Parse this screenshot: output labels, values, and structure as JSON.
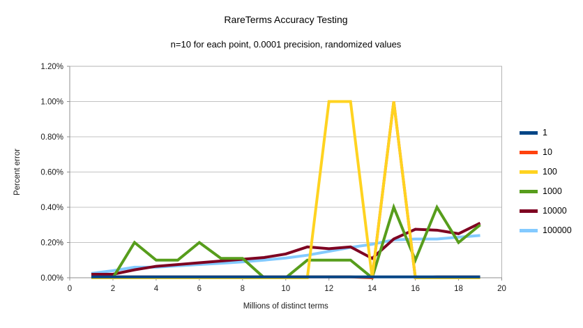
{
  "chart_data": {
    "type": "line",
    "title": "RareTerms Accuracy Testing",
    "subtitle": "n=10 for each point, 0.0001 precision, randomized values",
    "xlabel": "Millions of distinct terms",
    "ylabel": "Percent error",
    "xlim": [
      0,
      20
    ],
    "ylim_pct": [
      0,
      1.2
    ],
    "xticks": [
      0,
      2,
      4,
      6,
      8,
      10,
      12,
      14,
      16,
      18,
      20
    ],
    "xtick_labels": [
      "0",
      "2",
      "4",
      "6",
      "8",
      "10",
      "12",
      "14",
      "16",
      "18",
      "20"
    ],
    "yticks": [
      0,
      0.2,
      0.4,
      0.6,
      0.8,
      1.0,
      1.2
    ],
    "ytick_labels": [
      "0.00%",
      "0.20%",
      "0.40%",
      "0.60%",
      "0.80%",
      "1.00%",
      "1.20%"
    ],
    "grid": "horizontal",
    "legend_position": "right",
    "x": [
      1,
      2,
      3,
      4,
      5,
      6,
      7,
      8,
      9,
      10,
      11,
      12,
      13,
      14,
      15,
      16,
      17,
      18,
      19
    ],
    "series": [
      {
        "name": "1",
        "color": "#004586",
        "values": [
          0.005,
          0.005,
          0.005,
          0.005,
          0.005,
          0.005,
          0.005,
          0.005,
          0.005,
          0.005,
          0.005,
          0.005,
          0.005,
          0.005,
          0.005,
          0.005,
          0.005,
          0.005,
          0.005
        ]
      },
      {
        "name": "10",
        "color": "#ff420e",
        "values": [
          0.005,
          0.005,
          0.005,
          0.005,
          0.005,
          0.005,
          0.005,
          0.005,
          0.005,
          0.005,
          0.005,
          0.005,
          0.005,
          0.0,
          1.0,
          0.0,
          0.005,
          0.005,
          0.005
        ]
      },
      {
        "name": "100",
        "color": "#ffd320",
        "values": [
          0.0,
          0.0,
          0.0,
          0.0,
          0.0,
          0.0,
          0.0,
          0.0,
          0.0,
          0.0,
          0.0,
          1.0,
          1.0,
          0.0,
          1.0,
          0.0,
          0.0,
          0.0,
          0.0
        ]
      },
      {
        "name": "1000",
        "color": "#579d1c",
        "values": [
          0.0,
          0.0,
          0.2,
          0.1,
          0.1,
          0.2,
          0.11,
          0.11,
          0.0,
          0.0,
          0.1,
          0.1,
          0.1,
          0.0,
          0.4,
          0.1,
          0.4,
          0.2,
          0.3
        ]
      },
      {
        "name": "10000",
        "color": "#7e0021",
        "values": [
          0.02,
          0.02,
          0.045,
          0.065,
          0.075,
          0.085,
          0.095,
          0.105,
          0.115,
          0.135,
          0.175,
          0.165,
          0.175,
          0.11,
          0.22,
          0.275,
          0.27,
          0.25,
          0.31
        ]
      },
      {
        "name": "100000",
        "color": "#83caff",
        "values": [
          0.025,
          0.04,
          0.06,
          0.06,
          0.068,
          0.075,
          0.082,
          0.09,
          0.1,
          0.112,
          0.128,
          0.15,
          0.172,
          0.19,
          0.215,
          0.22,
          0.22,
          0.23,
          0.24
        ]
      }
    ],
    "paint_order": [
      "100000",
      "10000",
      "1000",
      "10",
      "100",
      "1"
    ]
  }
}
